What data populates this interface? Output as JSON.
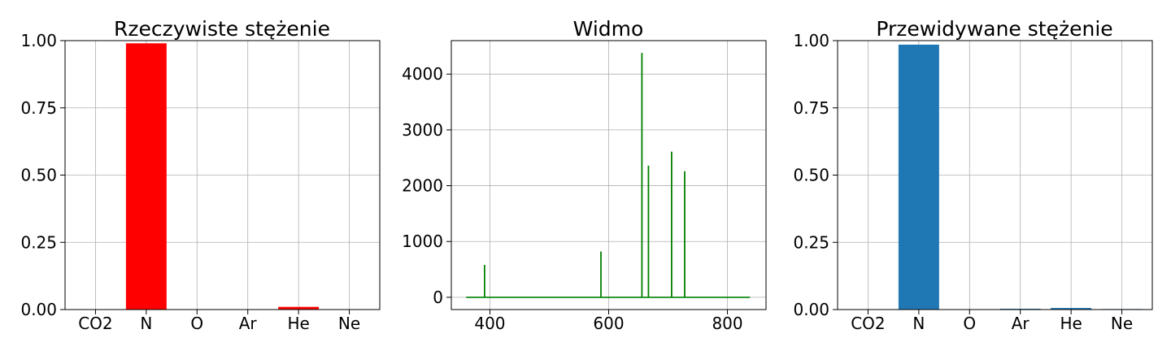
{
  "chart_data": [
    {
      "type": "bar",
      "title": "Rzeczywiste stężenie",
      "categories": [
        "CO2",
        "N",
        "O",
        "Ar",
        "He",
        "Ne"
      ],
      "values": [
        0.0,
        0.99,
        0.0,
        0.0,
        0.01,
        0.0
      ],
      "ylim": [
        0,
        1
      ],
      "yticks": [
        "0.00",
        "0.25",
        "0.50",
        "0.75",
        "1.00"
      ],
      "color": "#ff0000",
      "grid": true
    },
    {
      "type": "line",
      "title": "Widmo",
      "xlim": [
        335,
        865
      ],
      "ylim": [
        -220,
        4600
      ],
      "xticks": [
        400,
        600,
        800
      ],
      "yticks": [
        0,
        1000,
        2000,
        3000,
        4000
      ],
      "x_range": [
        360,
        838
      ],
      "peaks": [
        {
          "x": 391,
          "y": 580
        },
        {
          "x": 587,
          "y": 820
        },
        {
          "x": 656,
          "y": 4380
        },
        {
          "x": 667,
          "y": 2360
        },
        {
          "x": 706,
          "y": 2610
        },
        {
          "x": 728,
          "y": 2260
        }
      ],
      "color": "#008000",
      "grid": true
    },
    {
      "type": "bar",
      "title": "Przewidywane stężenie",
      "categories": [
        "CO2",
        "N",
        "O",
        "Ar",
        "He",
        "Ne"
      ],
      "values": [
        0.0,
        0.985,
        0.0,
        0.003,
        0.006,
        0.002
      ],
      "ylim": [
        0,
        1
      ],
      "yticks": [
        "0.00",
        "0.25",
        "0.50",
        "0.75",
        "1.00"
      ],
      "color": "#1f77b4",
      "grid": true
    }
  ]
}
